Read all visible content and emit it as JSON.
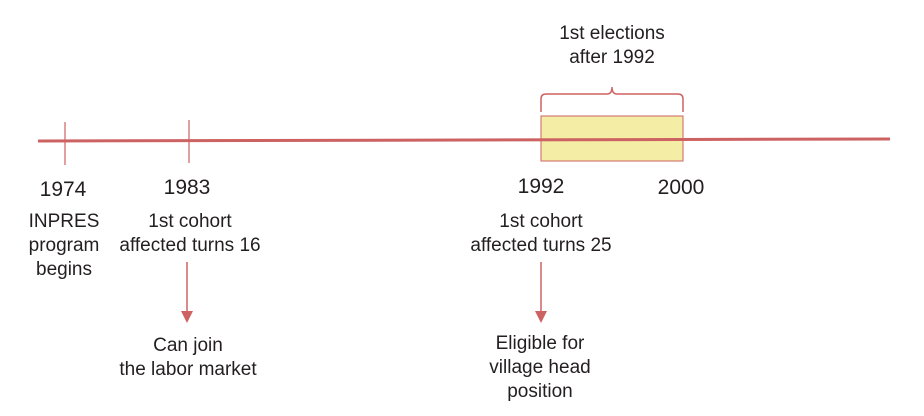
{
  "timeline": {
    "events": [
      {
        "year": "1974",
        "description": "INPRES\nprogram\nbegins"
      },
      {
        "year": "1983",
        "description": "1st cohort\naffected turns 16",
        "outcome": "Can join\nthe labor market"
      },
      {
        "year": "1992",
        "description": "1st cohort\naffected turns 25",
        "outcome": "Eligible for\nvillage head\nposition"
      },
      {
        "year": "2000"
      }
    ],
    "period": {
      "label": "1st elections\nafter 1992",
      "from": "1992",
      "to": "2000"
    }
  },
  "colors": {
    "line": "#cd6262",
    "highlight": "#f3eda5",
    "text": "#231f20"
  }
}
